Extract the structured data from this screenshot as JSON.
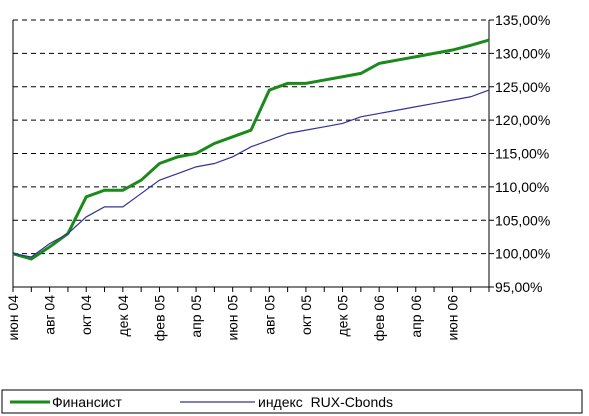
{
  "chart_data": {
    "type": "line",
    "categories": [
      "июн 04",
      null,
      "авг 04",
      null,
      "окт 04",
      null,
      "дек 04",
      null,
      "фев 05",
      null,
      "апр 05",
      null,
      "июн 05",
      null,
      "авг 05",
      null,
      "окт 05",
      null,
      "дек 05",
      null,
      "фев 06",
      null,
      "апр 06",
      null,
      "июн 06",
      null,
      null
    ],
    "series": [
      {
        "name": "Финансист",
        "color": "#1a8a1a",
        "values": [
          100,
          99.2,
          101,
          103,
          108.5,
          109.5,
          109.5,
          111,
          113.5,
          114.5,
          115,
          116.5,
          117.5,
          118.5,
          124.5,
          125.5,
          125.5,
          126,
          126.5,
          127,
          128.5,
          129,
          129.5,
          130,
          130.5,
          131.2,
          132
        ]
      },
      {
        "name": "индекс  RUX-Cbonds",
        "color": "#333399",
        "values": [
          100,
          99.5,
          101.5,
          103,
          105.5,
          107,
          107,
          109,
          111,
          112,
          113,
          113.5,
          114.5,
          116,
          117,
          118,
          118.5,
          119,
          119.5,
          120.5,
          121,
          121.5,
          122,
          122.5,
          123,
          123.5,
          124.5
        ]
      }
    ],
    "ylim": [
      95,
      135
    ],
    "yticks": [
      {
        "value": 95,
        "label": "95,00%"
      },
      {
        "value": 100,
        "label": "100,00%"
      },
      {
        "value": 105,
        "label": "105,00%"
      },
      {
        "value": 110,
        "label": "110,00%"
      },
      {
        "value": 115,
        "label": "115,00%"
      },
      {
        "value": 120,
        "label": "120,00%"
      },
      {
        "value": 125,
        "label": "125,00%"
      },
      {
        "value": 130,
        "label": "130,00%"
      },
      {
        "value": 135,
        "label": "135,00%"
      }
    ],
    "grid": true,
    "legend": "bottom"
  }
}
